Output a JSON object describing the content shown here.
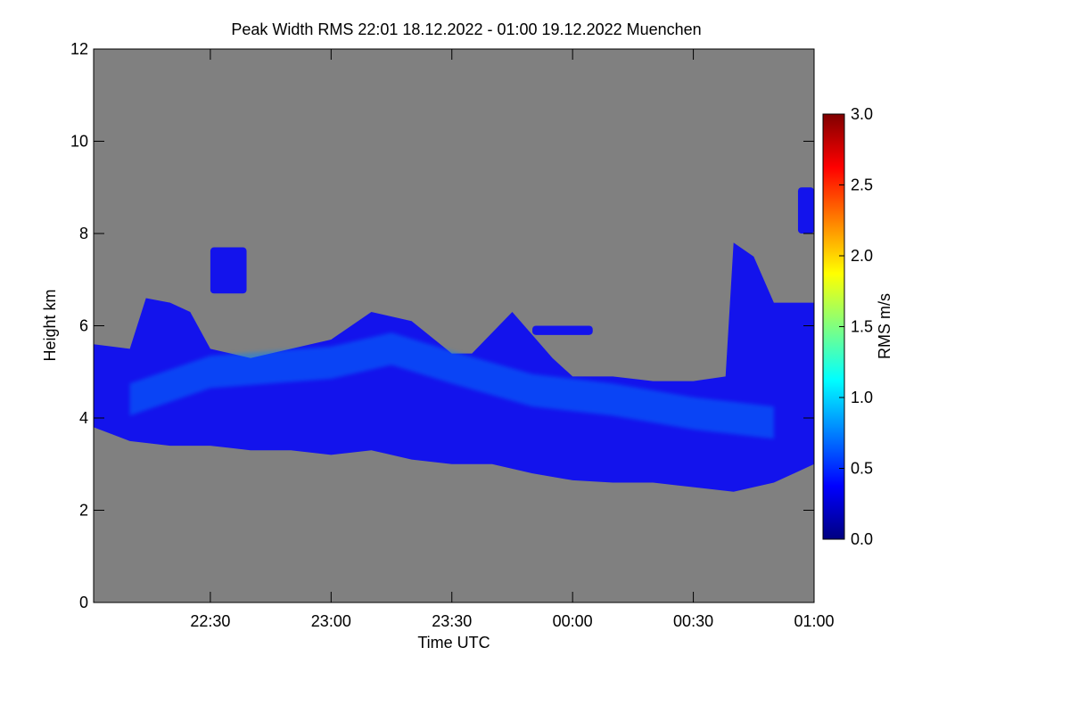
{
  "chart_data": {
    "type": "heatmap",
    "title": "Peak Width RMS   22:01 18.12.2022 - 01:00 19.12.2022 Muenchen",
    "xlabel": "Time UTC",
    "ylabel": "Height km",
    "xlim_minutes_after_2200": [
      1,
      180
    ],
    "ylim": [
      0,
      12
    ],
    "x_ticks": [
      {
        "label": "22:30",
        "value": 30
      },
      {
        "label": "23:00",
        "value": 60
      },
      {
        "label": "23:30",
        "value": 90
      },
      {
        "label": "00:00",
        "value": 120
      },
      {
        "label": "00:30",
        "value": 150
      },
      {
        "label": "01:00",
        "value": 180
      }
    ],
    "y_ticks": [
      {
        "label": "0",
        "value": 0
      },
      {
        "label": "2",
        "value": 2
      },
      {
        "label": "4",
        "value": 4
      },
      {
        "label": "6",
        "value": 6
      },
      {
        "label": "8",
        "value": 8
      },
      {
        "label": "10",
        "value": 10
      },
      {
        "label": "12",
        "value": 12
      }
    ],
    "colorbar": {
      "label": "RMS m/s",
      "range": [
        0.0,
        3.0
      ],
      "ticks": [
        {
          "label": "0.0",
          "value": 0.0
        },
        {
          "label": "0.5",
          "value": 0.5
        },
        {
          "label": "1.0",
          "value": 1.0
        },
        {
          "label": "1.5",
          "value": 1.5
        },
        {
          "label": "2.0",
          "value": 2.0
        },
        {
          "label": "2.5",
          "value": 2.5
        },
        {
          "label": "3.0",
          "value": 3.0
        }
      ]
    },
    "background_color": "#808080",
    "colormap": [
      "#000080",
      "#0000ff",
      "#0080ff",
      "#00ffff",
      "#80ff80",
      "#ffff00",
      "#ff8000",
      "#ff0000",
      "#800000"
    ],
    "echo_layer": {
      "description_values_rms": "mostly 0.1-0.5 m/s",
      "bottom_km": [
        [
          1,
          3.8
        ],
        [
          10,
          3.5
        ],
        [
          20,
          3.4
        ],
        [
          30,
          3.4
        ],
        [
          40,
          3.3
        ],
        [
          50,
          3.3
        ],
        [
          60,
          3.2
        ],
        [
          70,
          3.3
        ],
        [
          80,
          3.1
        ],
        [
          90,
          3.0
        ],
        [
          100,
          3.0
        ],
        [
          110,
          2.8
        ],
        [
          120,
          2.65
        ],
        [
          130,
          2.6
        ],
        [
          140,
          2.6
        ],
        [
          150,
          2.5
        ],
        [
          160,
          2.4
        ],
        [
          170,
          2.6
        ],
        [
          180,
          3.0
        ]
      ],
      "top_km": [
        [
          1,
          5.6
        ],
        [
          10,
          5.5
        ],
        [
          14,
          6.6
        ],
        [
          20,
          6.5
        ],
        [
          25,
          6.3
        ],
        [
          30,
          5.5
        ],
        [
          40,
          5.3
        ],
        [
          50,
          5.5
        ],
        [
          60,
          5.7
        ],
        [
          70,
          6.3
        ],
        [
          80,
          6.1
        ],
        [
          90,
          5.4
        ],
        [
          95,
          5.4
        ],
        [
          105,
          6.3
        ],
        [
          115,
          5.3
        ],
        [
          120,
          4.9
        ],
        [
          130,
          4.9
        ],
        [
          140,
          4.8
        ],
        [
          150,
          4.8
        ],
        [
          158,
          4.9
        ],
        [
          160,
          7.8
        ],
        [
          165,
          7.5
        ],
        [
          170,
          6.5
        ],
        [
          175,
          6.5
        ],
        [
          180,
          6.5
        ]
      ],
      "brighter_core_km": [
        [
          10,
          4.4
        ],
        [
          30,
          5.0
        ],
        [
          60,
          5.2
        ],
        [
          75,
          5.5
        ],
        [
          90,
          5.1
        ],
        [
          110,
          4.6
        ],
        [
          130,
          4.4
        ],
        [
          150,
          4.1
        ],
        [
          170,
          3.9
        ]
      ],
      "upper_patches": [
        {
          "x_min": [
            30,
            39
          ],
          "y_km": [
            6.7,
            7.7
          ]
        },
        {
          "x_min": [
            176,
            180
          ],
          "y_km": [
            8.0,
            9.0
          ]
        },
        {
          "x_min": [
            110,
            125
          ],
          "y_km": [
            5.8,
            6.0
          ]
        }
      ]
    }
  }
}
